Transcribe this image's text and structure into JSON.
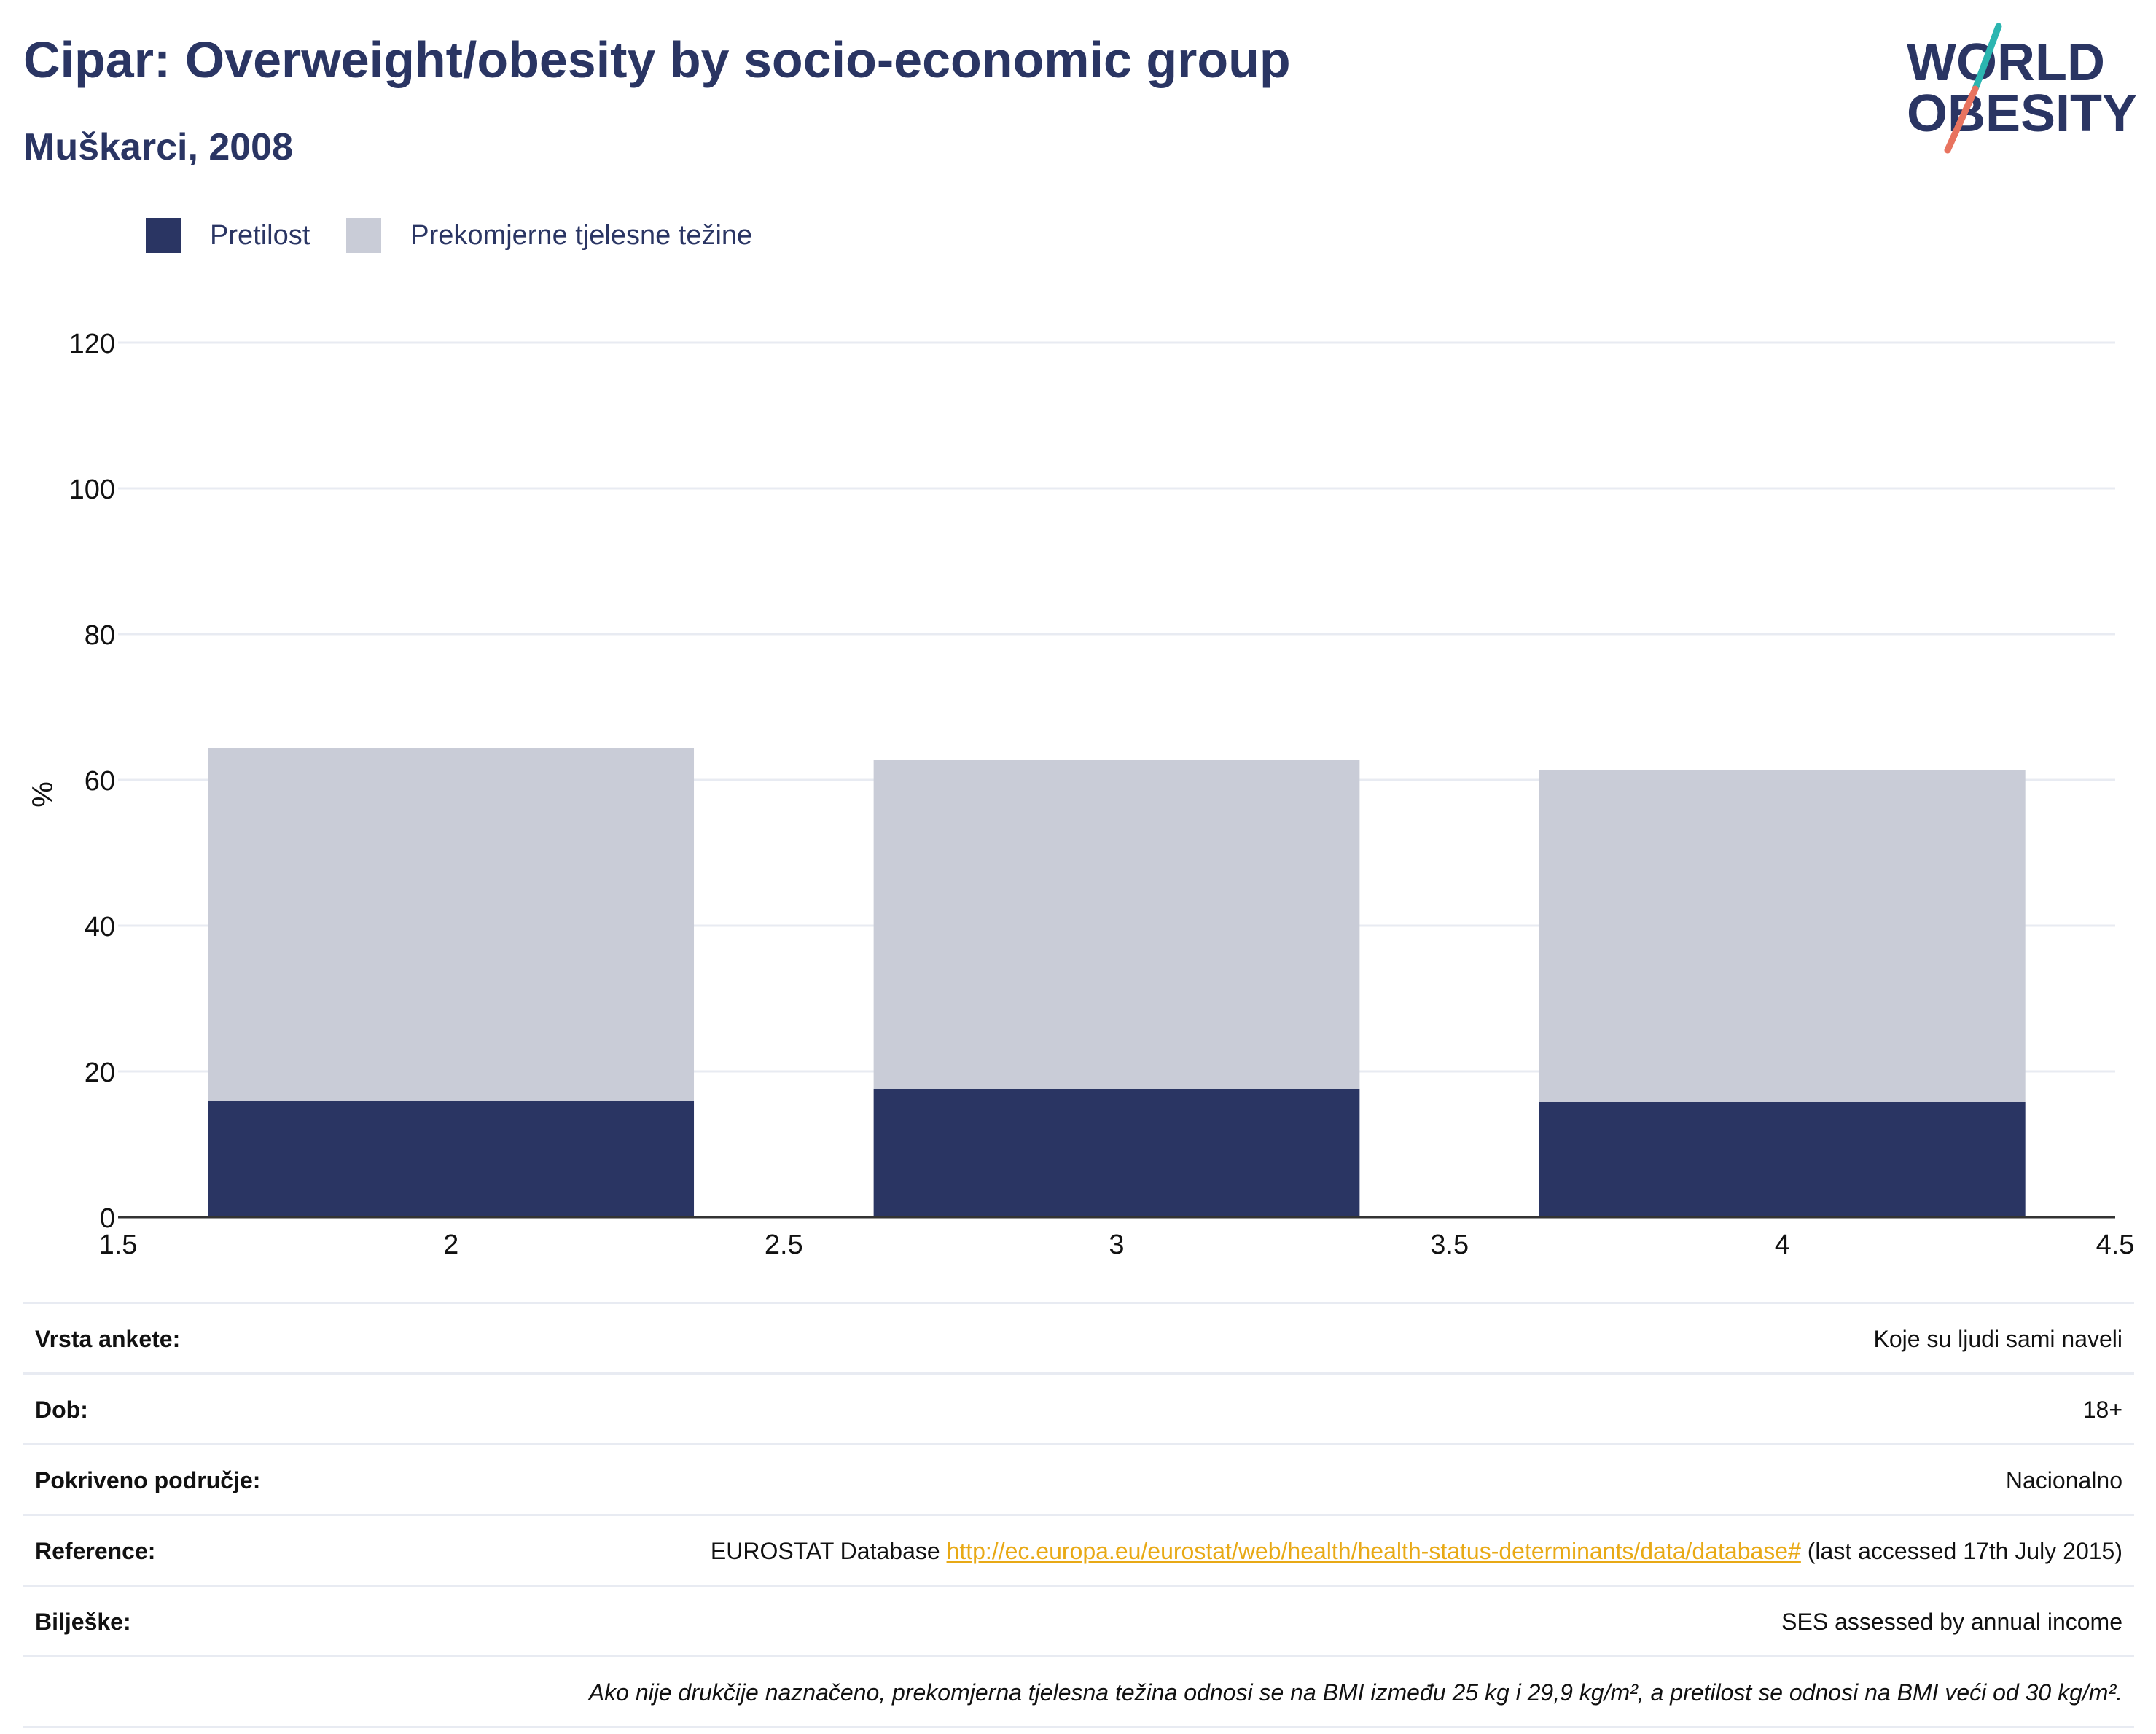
{
  "header": {
    "title": "Cipar: Overweight/obesity by socio-economic group",
    "subtitle": "Muškarci, 2008"
  },
  "logo": {
    "line1": "WORLD",
    "line2": "OBESITY",
    "colors": {
      "text": "#2a3563",
      "teal": "#2bb5b0",
      "coral": "#e8735f"
    }
  },
  "legend": {
    "items": [
      {
        "label": "Pretilost",
        "color": "#2a3563"
      },
      {
        "label": "Prekomjerne tjelesne težine",
        "color": "#c9ccd7"
      }
    ]
  },
  "chart_data": {
    "type": "bar",
    "stacked": true,
    "x": [
      2,
      3,
      4
    ],
    "series": [
      {
        "name": "Pretilost",
        "values": [
          16,
          17.6,
          15.8
        ],
        "color": "#2a3563"
      },
      {
        "name": "Prekomjerne tjelesne težine",
        "values": [
          48.4,
          45.1,
          45.6
        ],
        "color": "#c9ccd7"
      }
    ],
    "xlim": [
      1.5,
      4.5
    ],
    "ylim": [
      0,
      120
    ],
    "x_ticks": [
      "1.5",
      "2",
      "2.5",
      "3",
      "3.5",
      "4",
      "4.5"
    ],
    "y_ticks": [
      "0",
      "20",
      "40",
      "60",
      "80",
      "100",
      "120"
    ],
    "ylabel": "%",
    "xlabel": "",
    "grid": true,
    "legend_position": "top-left"
  },
  "info": {
    "rows": [
      {
        "key": "Vrsta ankete:",
        "value": "Koje su ljudi sami naveli"
      },
      {
        "key": "Dob:",
        "value": "18+"
      },
      {
        "key": "Pokriveno područje:",
        "value": "Nacionalno"
      },
      {
        "key": "Reference:",
        "value_prefix": "EUROSTAT Database ",
        "link": "http://ec.europa.eu/eurostat/web/health/health-status-determinants/data/database#",
        "value_suffix": " (last accessed 17th July 2015)"
      },
      {
        "key": "Bilješke:",
        "value": "SES assessed by annual income"
      }
    ],
    "note": "Ako nije drukčije naznačeno, prekomjerna tjelesna težina odnosi se na BMI između 25 kg i 29,9 kg/m², a pretilost se odnosi na BMI veći od 30 kg/m²."
  }
}
